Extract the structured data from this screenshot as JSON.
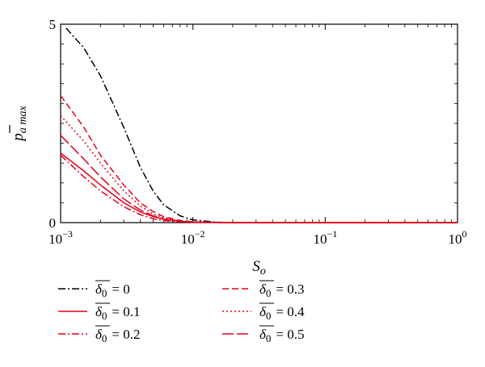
{
  "chart_data": {
    "type": "line",
    "xlabel": "S",
    "xlabel_sub": "o",
    "ylabel": "p",
    "ylabel_sub": "a max",
    "x_scale": "log",
    "xlim": [
      0.001,
      1
    ],
    "ylim": [
      0,
      5
    ],
    "x_ticks": [
      {
        "value": 0.001,
        "base": "10",
        "exp": "−3"
      },
      {
        "value": 0.01,
        "base": "10",
        "exp": "−2"
      },
      {
        "value": 0.1,
        "base": "10",
        "exp": "−1"
      },
      {
        "value": 1,
        "base": "10",
        "exp": "0"
      }
    ],
    "y_ticks": [
      {
        "value": 0,
        "label": "0"
      },
      {
        "value": 5,
        "label": "5"
      }
    ],
    "grid": false,
    "legend_position": "below",
    "series": [
      {
        "name_symbol": "δ",
        "name_sub": "0",
        "name_value": "= 0",
        "color": "#000000",
        "dash": "dashdot",
        "x": [
          0.0011,
          0.0015,
          0.002,
          0.003,
          0.004,
          0.005,
          0.006,
          0.008,
          0.01,
          0.015,
          0.02,
          0.05,
          0.1,
          1
        ],
        "y": [
          4.9,
          4.4,
          3.7,
          2.4,
          1.4,
          0.8,
          0.45,
          0.17,
          0.07,
          0.01,
          0,
          0,
          0,
          0
        ]
      },
      {
        "name_symbol": "δ",
        "name_sub": "0",
        "name_value": "= 0.1",
        "color": "#e3001b",
        "dash": "solid",
        "x": [
          0.001,
          0.0015,
          0.002,
          0.003,
          0.004,
          0.005,
          0.006,
          0.008,
          0.01,
          0.02,
          0.1,
          1
        ],
        "y": [
          1.75,
          1.3,
          0.95,
          0.5,
          0.27,
          0.15,
          0.09,
          0.03,
          0.01,
          0,
          0,
          0
        ]
      },
      {
        "name_symbol": "δ",
        "name_sub": "0",
        "name_value": "= 0.2",
        "color": "#e3001b",
        "dash": "dashdot",
        "x": [
          0.001,
          0.0015,
          0.002,
          0.003,
          0.004,
          0.005,
          0.006,
          0.008,
          0.01,
          0.02,
          0.1,
          1
        ],
        "y": [
          1.7,
          1.15,
          0.8,
          0.4,
          0.2,
          0.1,
          0.05,
          0.02,
          0.005,
          0,
          0,
          0
        ]
      },
      {
        "name_symbol": "δ",
        "name_sub": "0",
        "name_value": "= 0.3",
        "color": "#e3001b",
        "dash": "dashed",
        "x": [
          0.001,
          0.0015,
          0.002,
          0.003,
          0.004,
          0.005,
          0.006,
          0.008,
          0.01,
          0.02,
          0.1,
          1
        ],
        "y": [
          3.2,
          2.4,
          1.7,
          0.95,
          0.5,
          0.28,
          0.15,
          0.05,
          0.02,
          0,
          0,
          0
        ]
      },
      {
        "name_symbol": "δ",
        "name_sub": "0",
        "name_value": "= 0.4",
        "color": "#e3001b",
        "dash": "dotted",
        "x": [
          0.001,
          0.0015,
          0.002,
          0.003,
          0.004,
          0.005,
          0.006,
          0.008,
          0.01,
          0.02,
          0.1,
          1
        ],
        "y": [
          2.7,
          2.05,
          1.5,
          0.8,
          0.42,
          0.22,
          0.12,
          0.04,
          0.015,
          0,
          0,
          0
        ]
      },
      {
        "name_symbol": "δ",
        "name_sub": "0",
        "name_value": "= 0.5",
        "color": "#e3001b",
        "dash": "longdash",
        "x": [
          0.001,
          0.0015,
          0.002,
          0.003,
          0.004,
          0.005,
          0.006,
          0.008,
          0.01,
          0.02,
          0.1,
          1
        ],
        "y": [
          2.2,
          1.6,
          1.15,
          0.6,
          0.32,
          0.17,
          0.09,
          0.03,
          0.01,
          0,
          0,
          0
        ]
      }
    ]
  }
}
